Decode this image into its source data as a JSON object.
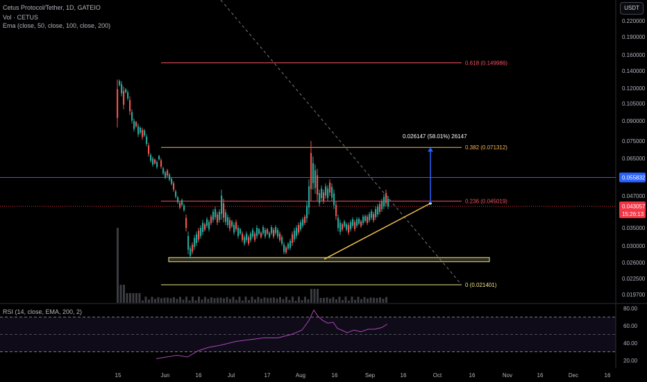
{
  "symbol": {
    "title": "Cetus Protocol/Tether, 1D, GATEIO",
    "vol_label": "Vol · CETUS",
    "ema_label": "Ema (close, 50, close, 100, close, 200)",
    "rsi_label": "RSI (14, close, EMA, 200, 2)"
  },
  "currency_button": "USDT",
  "price_axis": {
    "ticks": [
      {
        "label": "0.220000",
        "value": 0.22
      },
      {
        "label": "0.190000",
        "value": 0.19
      },
      {
        "label": "0.160000",
        "value": 0.16
      },
      {
        "label": "0.140000",
        "value": 0.14
      },
      {
        "label": "0.120000",
        "value": 0.12
      },
      {
        "label": "0.105000",
        "value": 0.105
      },
      {
        "label": "0.090000",
        "value": 0.09
      },
      {
        "label": "0.075000",
        "value": 0.075
      },
      {
        "label": "0.065000",
        "value": 0.065
      },
      {
        "label": "0.047000",
        "value": 0.047
      },
      {
        "label": "0.035000",
        "value": 0.035
      },
      {
        "label": "0.030000",
        "value": 0.03
      },
      {
        "label": "0.026000",
        "value": 0.026
      },
      {
        "label": "0.022500",
        "value": 0.0225
      },
      {
        "label": "0.019700",
        "value": 0.0197
      }
    ],
    "hline_badge": {
      "label": "0.055832",
      "value": 0.055832,
      "color": "#2962ff"
    },
    "current_price": {
      "label": "0.043057",
      "countdown": "15:26:13",
      "value": 0.043057,
      "color": "#f23645"
    }
  },
  "rsi_axis": {
    "ticks": [
      {
        "label": "80.00",
        "value": 80
      },
      {
        "label": "60.00",
        "value": 60
      },
      {
        "label": "40.00",
        "value": 40
      },
      {
        "label": "20.00",
        "value": 20
      }
    ]
  },
  "time_axis": {
    "labels": [
      "15",
      "Jun",
      "16",
      "Jul",
      "17",
      "Aug",
      "16",
      "Sep",
      "16",
      "Oct",
      "16",
      "Nov",
      "16",
      "Dec",
      "16"
    ]
  },
  "drawings": {
    "fib_levels": [
      {
        "label": "0.618 (0.149986)",
        "value": 0.149986,
        "color": "#f7525f"
      },
      {
        "label": "0.382 (0.071312)",
        "value": 0.071312,
        "color": "#ffb74d"
      },
      {
        "label": "0.236 (0.045019)",
        "value": 0.045019,
        "color": "#f7525f"
      },
      {
        "label": "0 (0.021401)",
        "value": 0.021401,
        "color": "#f0e68c"
      }
    ],
    "measure_label": "0.026147 (58.01%) 26147",
    "colors": {
      "support_zone": "#f0e68c",
      "trendline": "#f0c14b",
      "arrow": "#2962ff",
      "downtrend": "#787b86",
      "up": "#26a69a",
      "down": "#ef5350",
      "rsi_line": "#ab47bc",
      "rsi_band": "#7e57c2"
    }
  }
}
